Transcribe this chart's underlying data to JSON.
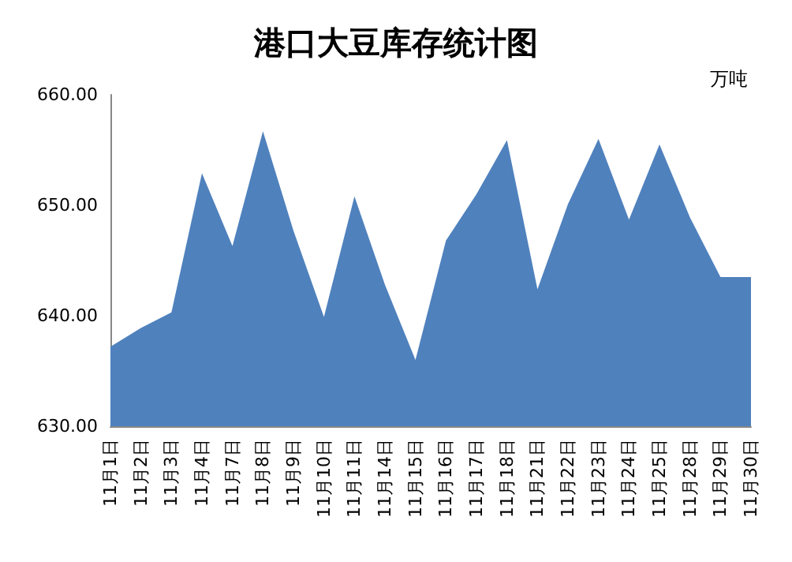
{
  "chart_data": {
    "type": "area",
    "title": "港口大豆库存统计图",
    "ylabel": "万吨",
    "categories": [
      "11月1日",
      "11月2日",
      "11月3日",
      "11月4日",
      "11月7日",
      "11月8日",
      "11月9日",
      "11月10日",
      "11月11日",
      "11月14日",
      "11月15日",
      "11月16日",
      "11月17日",
      "11月18日",
      "11月21日",
      "11月22日",
      "11月23日",
      "11月24日",
      "11月25日",
      "11月28日",
      "11月29日",
      "11月30日"
    ],
    "values": [
      637.2,
      638.9,
      640.3,
      652.9,
      646.3,
      656.7,
      647.7,
      639.9,
      650.8,
      642.8,
      636.0,
      646.8,
      651.0,
      655.9,
      642.4,
      650.1,
      656.0,
      648.7,
      655.5,
      648.9,
      643.5,
      643.5
    ],
    "color": "#4f81bd",
    "ylim": [
      630,
      660
    ],
    "yticks": [
      {
        "value": 630,
        "label": "630.00"
      },
      {
        "value": 640,
        "label": "640.00"
      },
      {
        "value": 650,
        "label": "650.00"
      },
      {
        "value": 660,
        "label": "660.00"
      }
    ],
    "grid": false
  }
}
